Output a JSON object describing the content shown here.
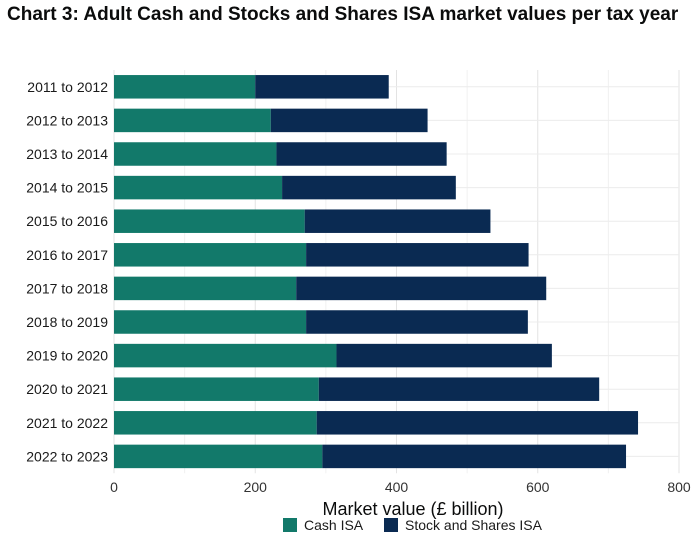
{
  "title": "Chart 3: Adult Cash and Stocks and Shares ISA market values per tax year",
  "chart_data": {
    "type": "bar",
    "orientation": "horizontal",
    "stacked": true,
    "categories": [
      "2011 to 2012",
      "2012 to 2013",
      "2013 to 2014",
      "2014 to 2015",
      "2015 to 2016",
      "2016 to 2017",
      "2017 to 2018",
      "2018 to 2019",
      "2019 to 2020",
      "2020 to 2021",
      "2021 to 2022",
      "2022 to 2023"
    ],
    "series": [
      {
        "name": "Cash ISA",
        "color": "#12796a",
        "values": [
          200,
          222,
          230,
          238,
          270,
          272,
          258,
          272,
          315,
          290,
          287,
          295
        ]
      },
      {
        "name": "Stock and Shares ISA",
        "color": "#0a2a52",
        "values": [
          189,
          222,
          241,
          246,
          263,
          315,
          354,
          314,
          305,
          397,
          455,
          430
        ]
      }
    ],
    "xlabel": "Market value (£ billion)",
    "ylabel": "",
    "xlim": [
      0,
      800
    ],
    "xticks": [
      0,
      200,
      400,
      600,
      800
    ],
    "grid": true,
    "legend_position": "bottom"
  }
}
